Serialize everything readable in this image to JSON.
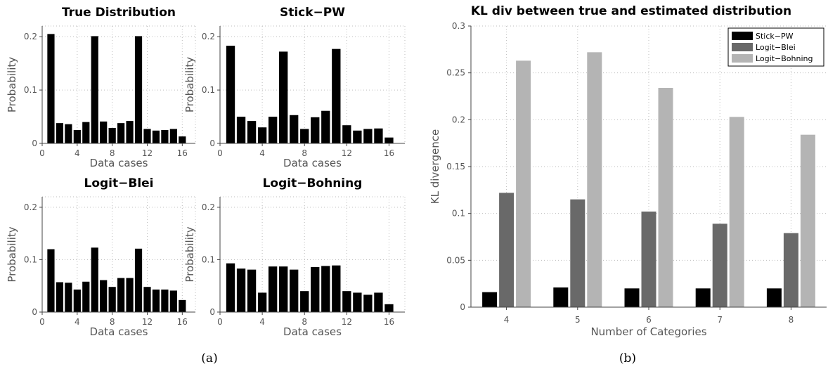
{
  "panel_labels": [
    "(a)",
    "(b)"
  ],
  "chart_data": [
    {
      "type": "bar",
      "title": "True Distribution",
      "xlabel": "Data cases",
      "ylabel": "Probability",
      "xlim": [
        0,
        17.5
      ],
      "ylim": [
        0,
        0.22
      ],
      "xticks": [
        0,
        4,
        8,
        12,
        16
      ],
      "yticks": [
        0,
        0.1,
        0.2
      ],
      "ytick_labels": [
        "0",
        "0.1",
        "0.2"
      ],
      "x": [
        1,
        2,
        3,
        4,
        5,
        6,
        7,
        8,
        9,
        10,
        11,
        12,
        13,
        14,
        15,
        16
      ],
      "values": [
        0.205,
        0.038,
        0.036,
        0.025,
        0.04,
        0.201,
        0.041,
        0.029,
        0.038,
        0.042,
        0.201,
        0.027,
        0.024,
        0.025,
        0.027,
        0.013
      ],
      "grid": true
    },
    {
      "type": "bar",
      "title": "Stick−PW",
      "xlabel": "Data cases",
      "ylabel": "Probability",
      "xlim": [
        0,
        17.5
      ],
      "ylim": [
        0,
        0.22
      ],
      "xticks": [
        0,
        4,
        8,
        12,
        16
      ],
      "yticks": [
        0,
        0.1,
        0.2
      ],
      "ytick_labels": [
        "0",
        "0.1",
        "0.2"
      ],
      "x": [
        1,
        2,
        3,
        4,
        5,
        6,
        7,
        8,
        9,
        10,
        11,
        12,
        13,
        14,
        15,
        16
      ],
      "values": [
        0.183,
        0.05,
        0.042,
        0.03,
        0.05,
        0.172,
        0.053,
        0.027,
        0.049,
        0.061,
        0.177,
        0.034,
        0.024,
        0.027,
        0.028,
        0.011
      ],
      "grid": true
    },
    {
      "type": "bar",
      "title": "Logit−Blei",
      "xlabel": "Data cases",
      "ylabel": "Probability",
      "xlim": [
        0,
        17.5
      ],
      "ylim": [
        0,
        0.22
      ],
      "xticks": [
        0,
        4,
        8,
        12,
        16
      ],
      "yticks": [
        0,
        0.1,
        0.2
      ],
      "ytick_labels": [
        "0",
        "0.1",
        "0.2"
      ],
      "x": [
        1,
        2,
        3,
        4,
        5,
        6,
        7,
        8,
        9,
        10,
        11,
        12,
        13,
        14,
        15,
        16
      ],
      "values": [
        0.12,
        0.057,
        0.056,
        0.043,
        0.058,
        0.123,
        0.061,
        0.048,
        0.065,
        0.065,
        0.121,
        0.048,
        0.043,
        0.043,
        0.041,
        0.023
      ],
      "grid": true
    },
    {
      "type": "bar",
      "title": "Logit−Bohning",
      "xlabel": "Data cases",
      "ylabel": "Probability",
      "xlim": [
        0,
        17.5
      ],
      "ylim": [
        0,
        0.22
      ],
      "xticks": [
        0,
        4,
        8,
        12,
        16
      ],
      "yticks": [
        0,
        0.1,
        0.2
      ],
      "ytick_labels": [
        "0",
        "0.1",
        "0.2"
      ],
      "x": [
        1,
        2,
        3,
        4,
        5,
        6,
        7,
        8,
        9,
        10,
        11,
        12,
        13,
        14,
        15,
        16
      ],
      "values": [
        0.093,
        0.083,
        0.081,
        0.037,
        0.087,
        0.087,
        0.081,
        0.04,
        0.086,
        0.088,
        0.089,
        0.04,
        0.037,
        0.033,
        0.037,
        0.015
      ],
      "grid": true
    },
    {
      "type": "bar",
      "title": "KL div between true and estimated distribution",
      "xlabel": "Number of Categories",
      "ylabel": "KL divergence",
      "ylim": [
        0,
        0.3
      ],
      "yticks": [
        0,
        0.05,
        0.1,
        0.15,
        0.2,
        0.25,
        0.3
      ],
      "ytick_labels": [
        "0",
        "0.05",
        "0.1",
        "0.15",
        "0.2",
        "0.25",
        "0.3"
      ],
      "categories": [
        "4",
        "5",
        "6",
        "7",
        "8"
      ],
      "series": [
        {
          "name": "Stick−PW",
          "color": "#000000",
          "values": [
            0.016,
            0.021,
            0.02,
            0.02,
            0.02
          ]
        },
        {
          "name": "Logit−Blei",
          "color": "#696969",
          "values": [
            0.122,
            0.115,
            0.102,
            0.089,
            0.079
          ]
        },
        {
          "name": "Logit−Bohning",
          "color": "#b4b4b4",
          "values": [
            0.263,
            0.272,
            0.234,
            0.203,
            0.184
          ]
        }
      ],
      "legend": "top-right",
      "grid": true
    }
  ]
}
